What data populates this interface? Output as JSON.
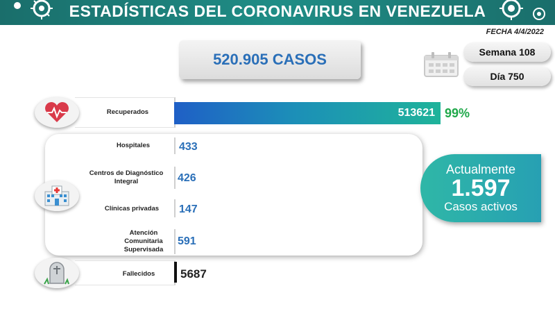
{
  "header": {
    "title": "ESTADÍSTICAS DEL CORONAVIRUS EN VENEZUELA",
    "date": "FECHA 4/4/2022"
  },
  "cases": {
    "total": "520.905 CASOS"
  },
  "calendar": {
    "week": "Semana 108",
    "day": "Día 750"
  },
  "recovered": {
    "label": "Recuperados",
    "value": "513621",
    "percent": "99%",
    "percent_value": 99
  },
  "facilities": [
    {
      "label": "Hospitales",
      "value": "433"
    },
    {
      "label": "Centros de Diagnóstico Integral",
      "value": "426"
    },
    {
      "label": "Clínicas privadas",
      "value": "147"
    },
    {
      "label": "Atención Comunitaria Supervisada",
      "value": "591"
    }
  ],
  "active": {
    "top": "Actualmente",
    "number": "1.597",
    "bottom": "Casos activos"
  },
  "deaths": {
    "label": "Fallecidos",
    "value": "5687"
  },
  "colors": {
    "header": "#1f8d86",
    "accent_blue": "#2a6fb8",
    "green": "#1fa84a",
    "active": "#2fb7a7"
  },
  "icons": [
    "virus-icon",
    "calendar-icon",
    "heart-icon",
    "hospital-icon",
    "tombstone-icon"
  ]
}
